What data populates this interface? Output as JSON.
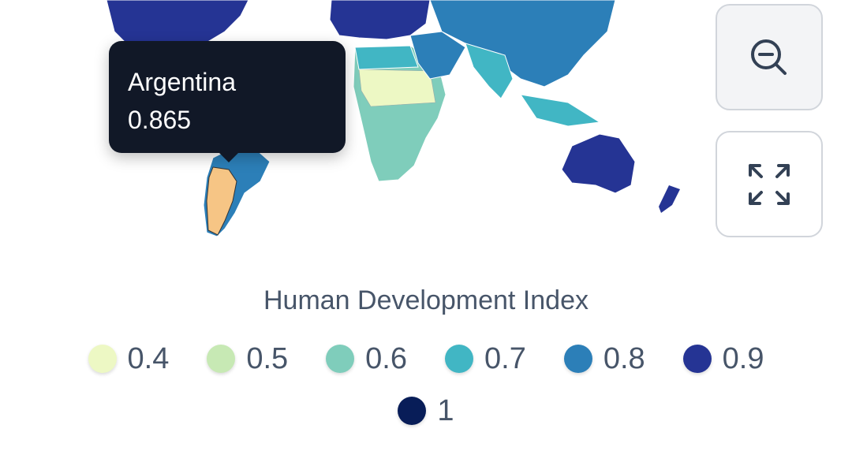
{
  "tooltip": {
    "country": "Argentina",
    "value": "0.865"
  },
  "legend": {
    "title": "Human Development Index",
    "items": [
      {
        "label": "0.4",
        "color": "#edf8c4"
      },
      {
        "label": "0.5",
        "color": "#c7e9b4"
      },
      {
        "label": "0.6",
        "color": "#7fcdbb"
      },
      {
        "label": "0.7",
        "color": "#41b6c4"
      },
      {
        "label": "0.8",
        "color": "#2c7fb8"
      },
      {
        "label": "0.9",
        "color": "#253494"
      },
      {
        "label": "1",
        "color": "#081d58"
      }
    ]
  }
}
